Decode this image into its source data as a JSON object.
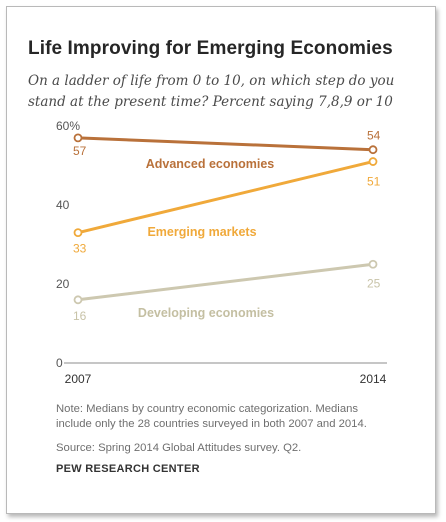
{
  "chart_data": {
    "type": "line",
    "title": "Life Improving for Emerging Economies",
    "subtitle": "On a ladder of life from 0 to 10, on which step do you stand at the present time? Percent saying 7,8,9 or 10",
    "x": [
      "2007",
      "2014"
    ],
    "ylim": [
      0,
      60
    ],
    "yticks": [
      "0",
      "20",
      "40",
      "60%"
    ],
    "grid": false,
    "series": [
      {
        "name": "Advanced economies",
        "values": [
          57,
          54
        ],
        "labels": [
          "57",
          "54"
        ],
        "color": "#b9713a"
      },
      {
        "name": "Emerging markets",
        "values": [
          33,
          51
        ],
        "labels": [
          "33",
          "51"
        ],
        "color": "#f0a93a"
      },
      {
        "name": "Developing economies",
        "values": [
          16,
          25
        ],
        "labels": [
          "16",
          "25"
        ],
        "color": "#cdc8b0"
      }
    ]
  },
  "note": "Note: Medians by country economic categorization. Medians include only the 28 countries surveyed in both 2007 and 2014.",
  "source": "Source: Spring 2014 Global Attitudes survey. Q2.",
  "org": "PEW RESEARCH CENTER"
}
